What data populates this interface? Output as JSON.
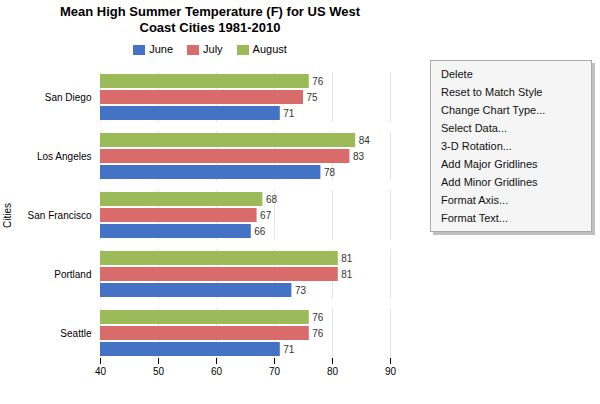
{
  "chart_data": {
    "type": "bar",
    "orientation": "horizontal",
    "title": "Mean High Summer Temperature (F) for US West\nCoast Cities 1981-2010",
    "ylabel": "Cities",
    "categories": [
      "San Diego",
      "Los Angeles",
      "San Francisco",
      "Portland",
      "Seattle"
    ],
    "series": [
      {
        "name": "June",
        "color": "#4472C4",
        "values": [
          71,
          78,
          66,
          73,
          71
        ]
      },
      {
        "name": "July",
        "color": "#DA6B6B",
        "values": [
          75,
          83,
          67,
          81,
          76
        ]
      },
      {
        "name": "August",
        "color": "#9BBB59",
        "values": [
          76,
          84,
          68,
          81,
          76
        ]
      }
    ],
    "xlim": [
      40,
      90
    ],
    "xticks": [
      40,
      50,
      60,
      70,
      80,
      90
    ],
    "grid": true,
    "legend": "right",
    "data_labels": true,
    "annotations": [
      "Delete",
      "Reset to Match Style",
      "Change Chart Type...",
      "Select Data...",
      "3-D Rotation...",
      "Add Major Gridlines",
      "Add Minor Gridlines",
      "Format Axis...",
      "Format Text..."
    ]
  }
}
